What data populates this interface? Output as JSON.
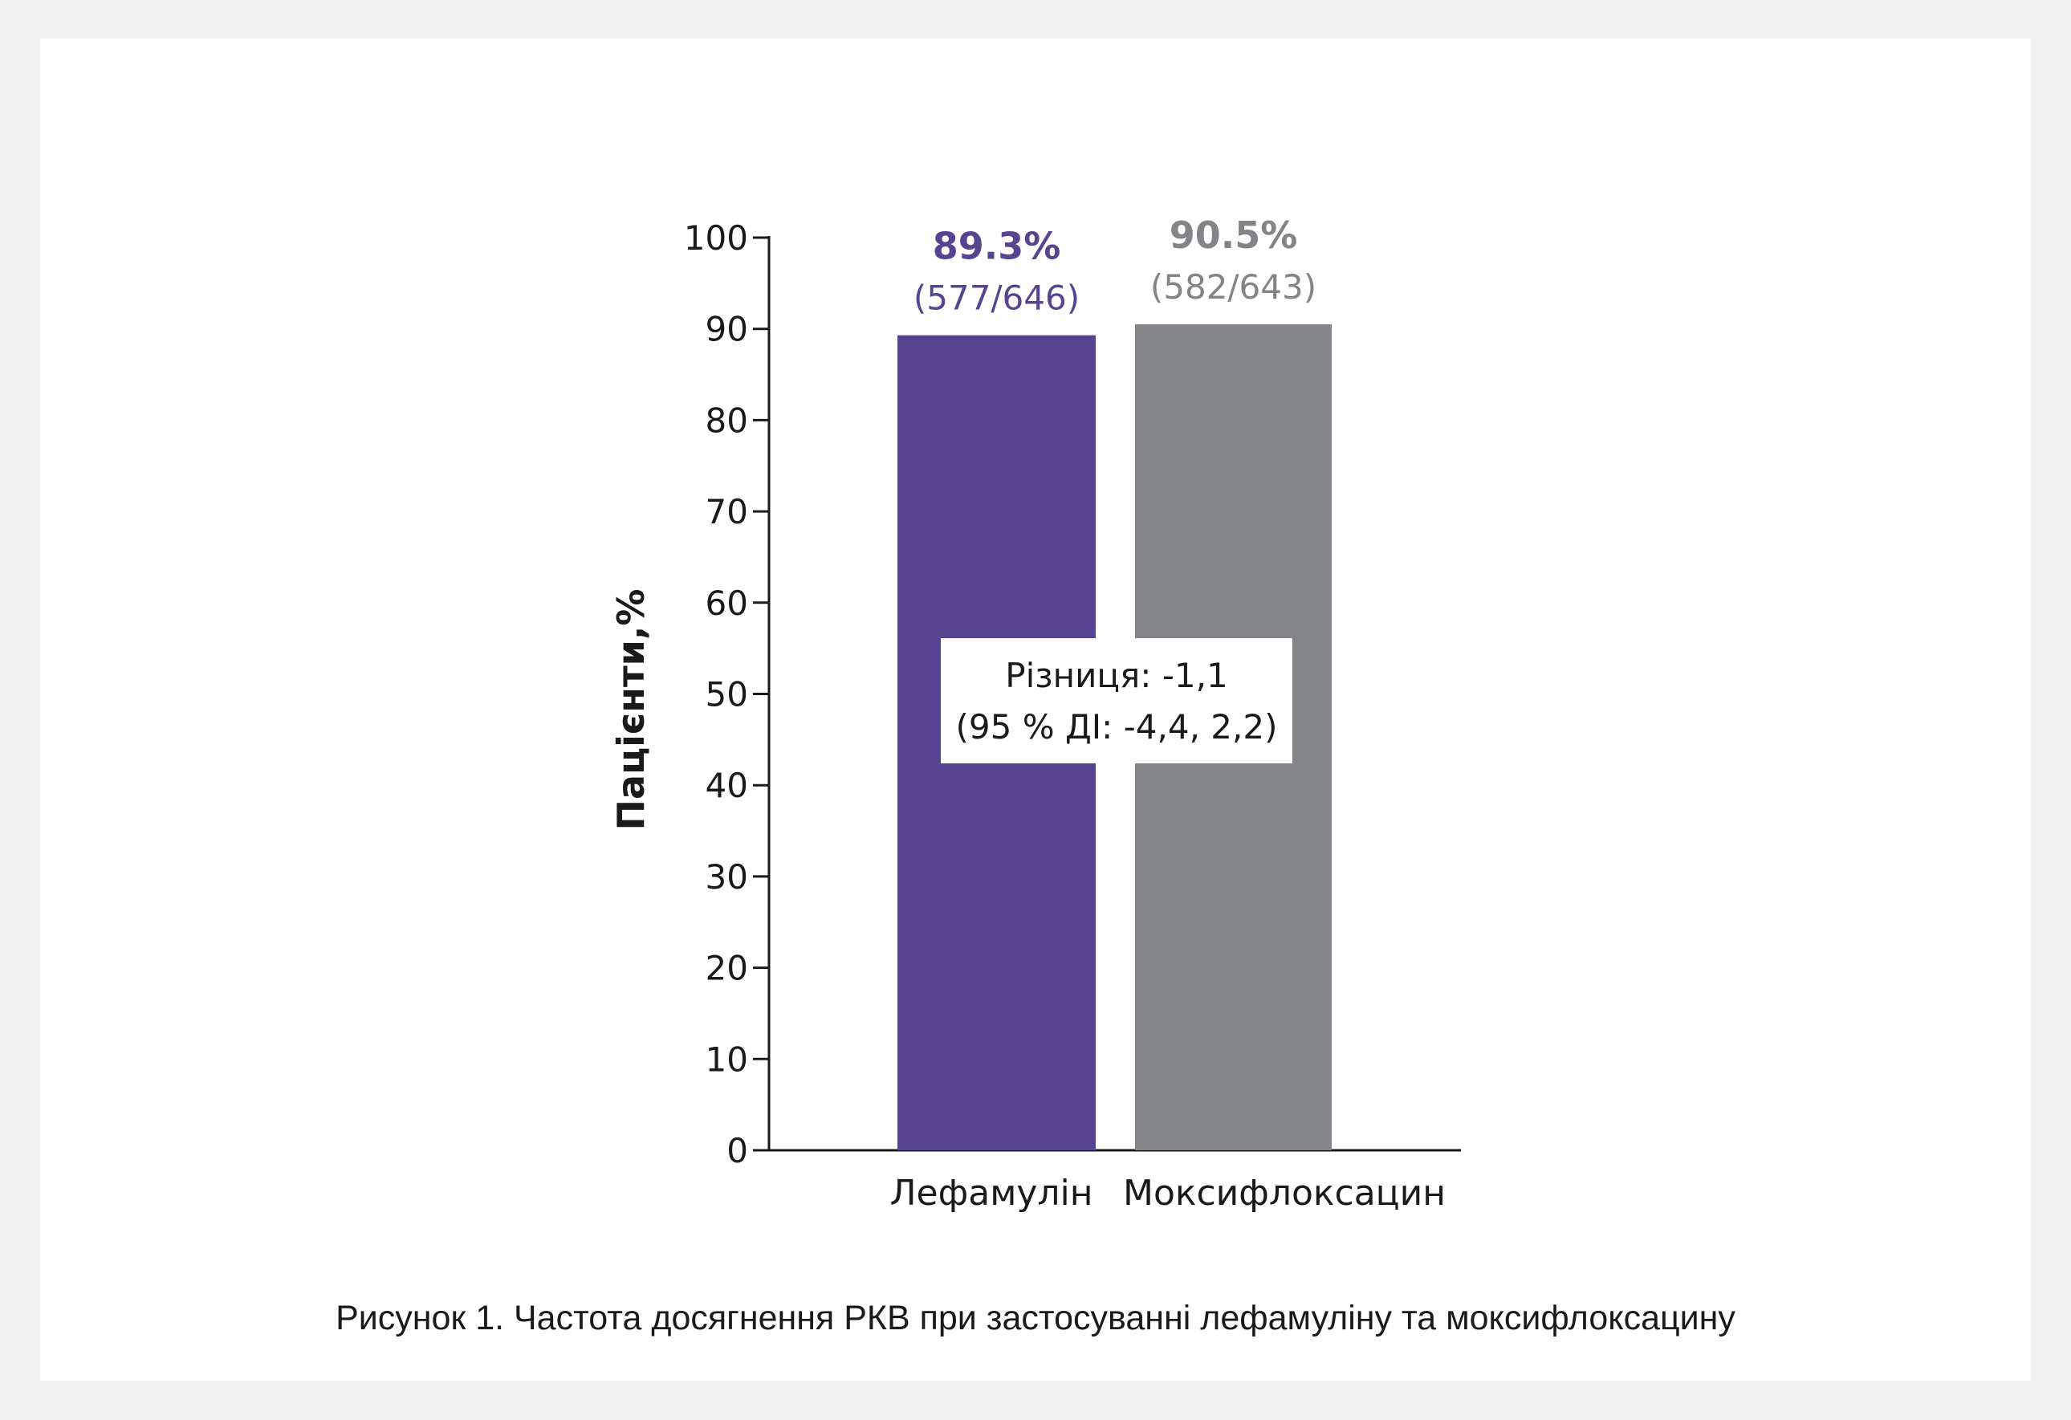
{
  "chart_data": {
    "type": "bar",
    "categories": [
      "Лефамулін",
      "Моксифлоксацин"
    ],
    "values": [
      89.3,
      90.5
    ],
    "value_labels": [
      "89.3%",
      "90.5%"
    ],
    "fraction_labels": [
      "(577/646)",
      "(582/643)"
    ],
    "colors": [
      "#574491",
      "#838487"
    ],
    "ylabel": "Пацієнти,%",
    "ylim": [
      0,
      100
    ],
    "yticks": [
      0,
      10,
      20,
      30,
      40,
      50,
      60,
      70,
      80,
      90,
      100
    ],
    "annotation": {
      "line1": "Різниця: -1,1",
      "line2": "(95 % ДІ: -4,4, 2,2)"
    }
  },
  "caption": "Рисунок 1. Частота досягнення РКВ при застосуванні лефамуліну та моксифлоксацину"
}
